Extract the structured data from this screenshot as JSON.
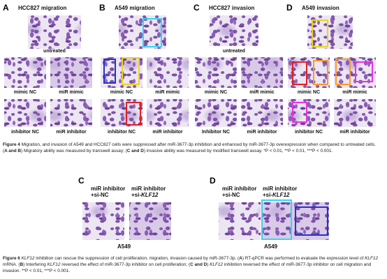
{
  "figure4": {
    "panels": [
      {
        "letter": "A",
        "title": "HCC827 migration",
        "top_label": "untreated",
        "labels": [
          "mimic NC",
          "miR mimic",
          "inhibitor NC",
          "miR inhibitor"
        ]
      },
      {
        "letter": "B",
        "title": "A549 migration",
        "labels": [
          "mimic NC",
          "miR mimic",
          "inhibitor NC",
          "miR inhibitor"
        ]
      },
      {
        "letter": "C",
        "title": "HCC827 invasion",
        "top_label": "untreated",
        "labels": [
          "mimic NC",
          "miR mimic",
          "Inhibitor NC",
          "miR inhibitor"
        ]
      },
      {
        "letter": "D",
        "title": "A549 invasion",
        "labels": [
          "mimic NC",
          "miR mimic",
          "inhibitor NC",
          "miR inhibitor"
        ]
      }
    ],
    "caption": [
      "Figure 4",
      " Migration, and invasion of A549 and HCC827 cells were suppressed after miR-3677-3p inhibition and enhanced by miR-3677-3p overexpression when compared to untreated cells. (",
      "A and B",
      ") Migratory ability was measured by transwell assay; (",
      "C and D",
      ") invasive ability was measured by modified transwell assay. *P < 0.01, **P < 0.01, ***P < 0.001."
    ]
  },
  "figure6": {
    "panels": [
      {
        "letter": "C",
        "labels": [
          [
            "miR inhibitor",
            "+si-NC"
          ],
          [
            "miR inhibitor",
            "+si-",
            "KLF12"
          ]
        ],
        "cell_line": "A549"
      },
      {
        "letter": "D",
        "labels": [
          [
            "miR inhibitor",
            "+si-NC"
          ],
          [
            "miR inhibitor",
            "+si-",
            "KLF12"
          ]
        ],
        "cell_line": "A549"
      }
    ],
    "caption": [
      "Figure 6 ",
      "KLF12",
      " inhibition can rescue the suppression of cell proliferation, migration, invasion caused by miR-3677-3p. (",
      "A",
      ") RT-qPCR was performed to evaluate the expression level of ",
      "KLF12",
      " mRNA. (",
      "B",
      ") Interfering ",
      "KLF12",
      " reversed the effect of miR-3677-3p inhibitor on cell proliferation; (",
      "C and D",
      ") ",
      "KLF12",
      " inhibition reversed the effect of miR-3677-3p inhibitor on cell migration and invasion. **P < 0.01, ***P < 0.001."
    ]
  }
}
